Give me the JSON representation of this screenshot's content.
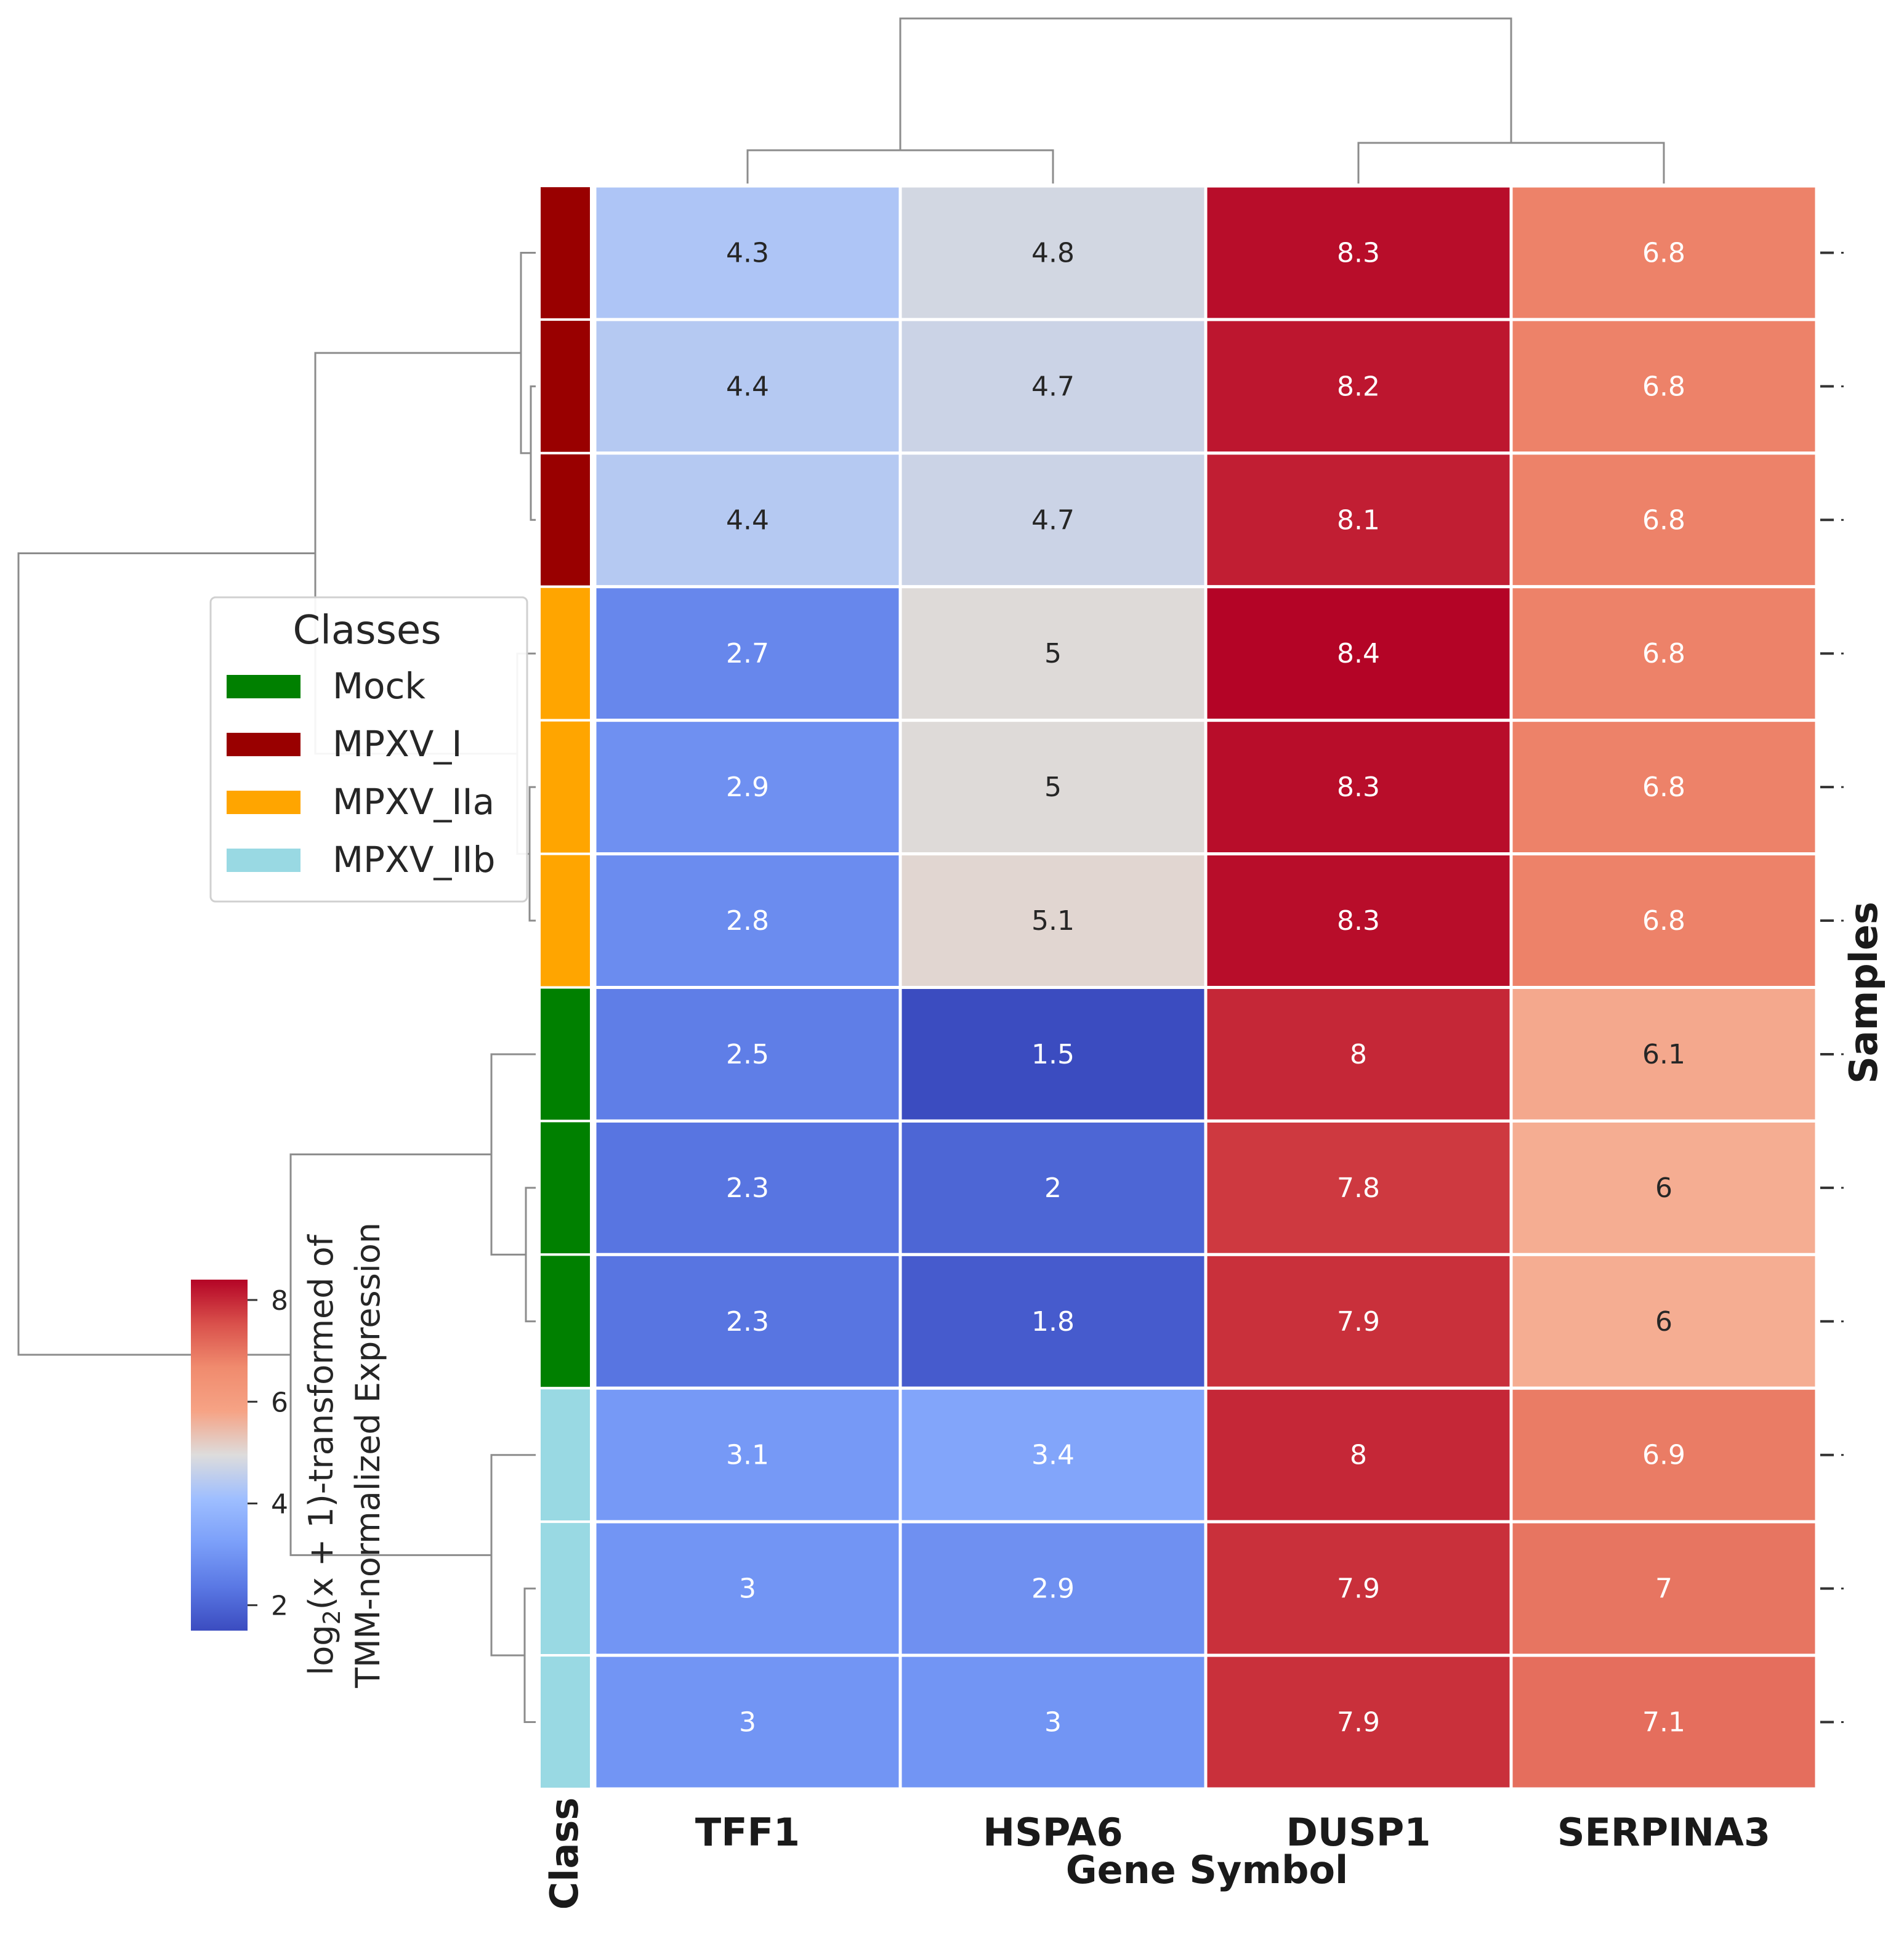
{
  "chart_data": {
    "type": "heatmap",
    "title": "",
    "xlabel": "Gene Symbol",
    "ylabel": "Samples",
    "class_column_label": "Class",
    "columns": [
      "TFF1",
      "HSPA6",
      "DUSP1",
      "SERPINA3"
    ],
    "rows": [
      {
        "class": "MPXV_I",
        "values": [
          4.3,
          4.8,
          8.3,
          6.8
        ],
        "labels": [
          "4.3",
          "4.8",
          "8.3",
          "6.8"
        ]
      },
      {
        "class": "MPXV_I",
        "values": [
          4.4,
          4.7,
          8.2,
          6.8
        ],
        "labels": [
          "4.4",
          "4.7",
          "8.2",
          "6.8"
        ]
      },
      {
        "class": "MPXV_I",
        "values": [
          4.4,
          4.7,
          8.1,
          6.8
        ],
        "labels": [
          "4.4",
          "4.7",
          "8.1",
          "6.8"
        ]
      },
      {
        "class": "MPXV_IIa",
        "values": [
          2.7,
          5.0,
          8.4,
          6.8
        ],
        "labels": [
          "2.7",
          "5",
          "8.4",
          "6.8"
        ]
      },
      {
        "class": "MPXV_IIa",
        "values": [
          2.9,
          5.0,
          8.3,
          6.8
        ],
        "labels": [
          "2.9",
          "5",
          "8.3",
          "6.8"
        ]
      },
      {
        "class": "MPXV_IIa",
        "values": [
          2.8,
          5.1,
          8.3,
          6.8
        ],
        "labels": [
          "2.8",
          "5.1",
          "8.3",
          "6.8"
        ]
      },
      {
        "class": "Mock",
        "values": [
          2.5,
          1.5,
          8.0,
          6.1
        ],
        "labels": [
          "2.5",
          "1.5",
          "8",
          "6.1"
        ]
      },
      {
        "class": "Mock",
        "values": [
          2.3,
          2.0,
          7.8,
          6.0
        ],
        "labels": [
          "2.3",
          "2",
          "7.8",
          "6"
        ]
      },
      {
        "class": "Mock",
        "values": [
          2.3,
          1.8,
          7.9,
          6.0
        ],
        "labels": [
          "2.3",
          "1.8",
          "7.9",
          "6"
        ]
      },
      {
        "class": "MPXV_IIb",
        "values": [
          3.1,
          3.4,
          8.0,
          6.9
        ],
        "labels": [
          "3.1",
          "3.4",
          "8",
          "6.9"
        ]
      },
      {
        "class": "MPXV_IIb",
        "values": [
          3.0,
          2.9,
          7.9,
          7.0
        ],
        "labels": [
          "3",
          "2.9",
          "7.9",
          "7"
        ]
      },
      {
        "class": "MPXV_IIb",
        "values": [
          3.0,
          3.0,
          7.9,
          7.1
        ],
        "labels": [
          "3",
          "3",
          "7.9",
          "7.1"
        ]
      }
    ],
    "legend": {
      "title": "Classes",
      "items": [
        {
          "name": "Mock",
          "color": "#008000"
        },
        {
          "name": "MPXV_I",
          "color": "#990000"
        },
        {
          "name": "MPXV_IIa",
          "color": "#FFA500"
        },
        {
          "name": "MPXV_IIb",
          "color": "#99D9E3"
        }
      ]
    },
    "colorbar": {
      "label_prefix": "log",
      "label_sub": "2",
      "label_expr": "(x + 1)-transformed of",
      "label_line2": "TMM-normalized Expression",
      "range": [
        1.5,
        8.4
      ],
      "ticks": [
        2,
        4,
        6,
        8
      ],
      "colormap": "coolwarm"
    },
    "col_dendrogram": [
      [
        0,
        1
      ],
      [
        2,
        3
      ],
      [
        [
          0,
          1
        ],
        [
          2,
          3
        ]
      ]
    ],
    "row_dendrogram_groups": [
      [
        "MPXV_I",
        "MPXV_IIa"
      ],
      [
        "Mock",
        "MPXV_IIb"
      ]
    ]
  }
}
